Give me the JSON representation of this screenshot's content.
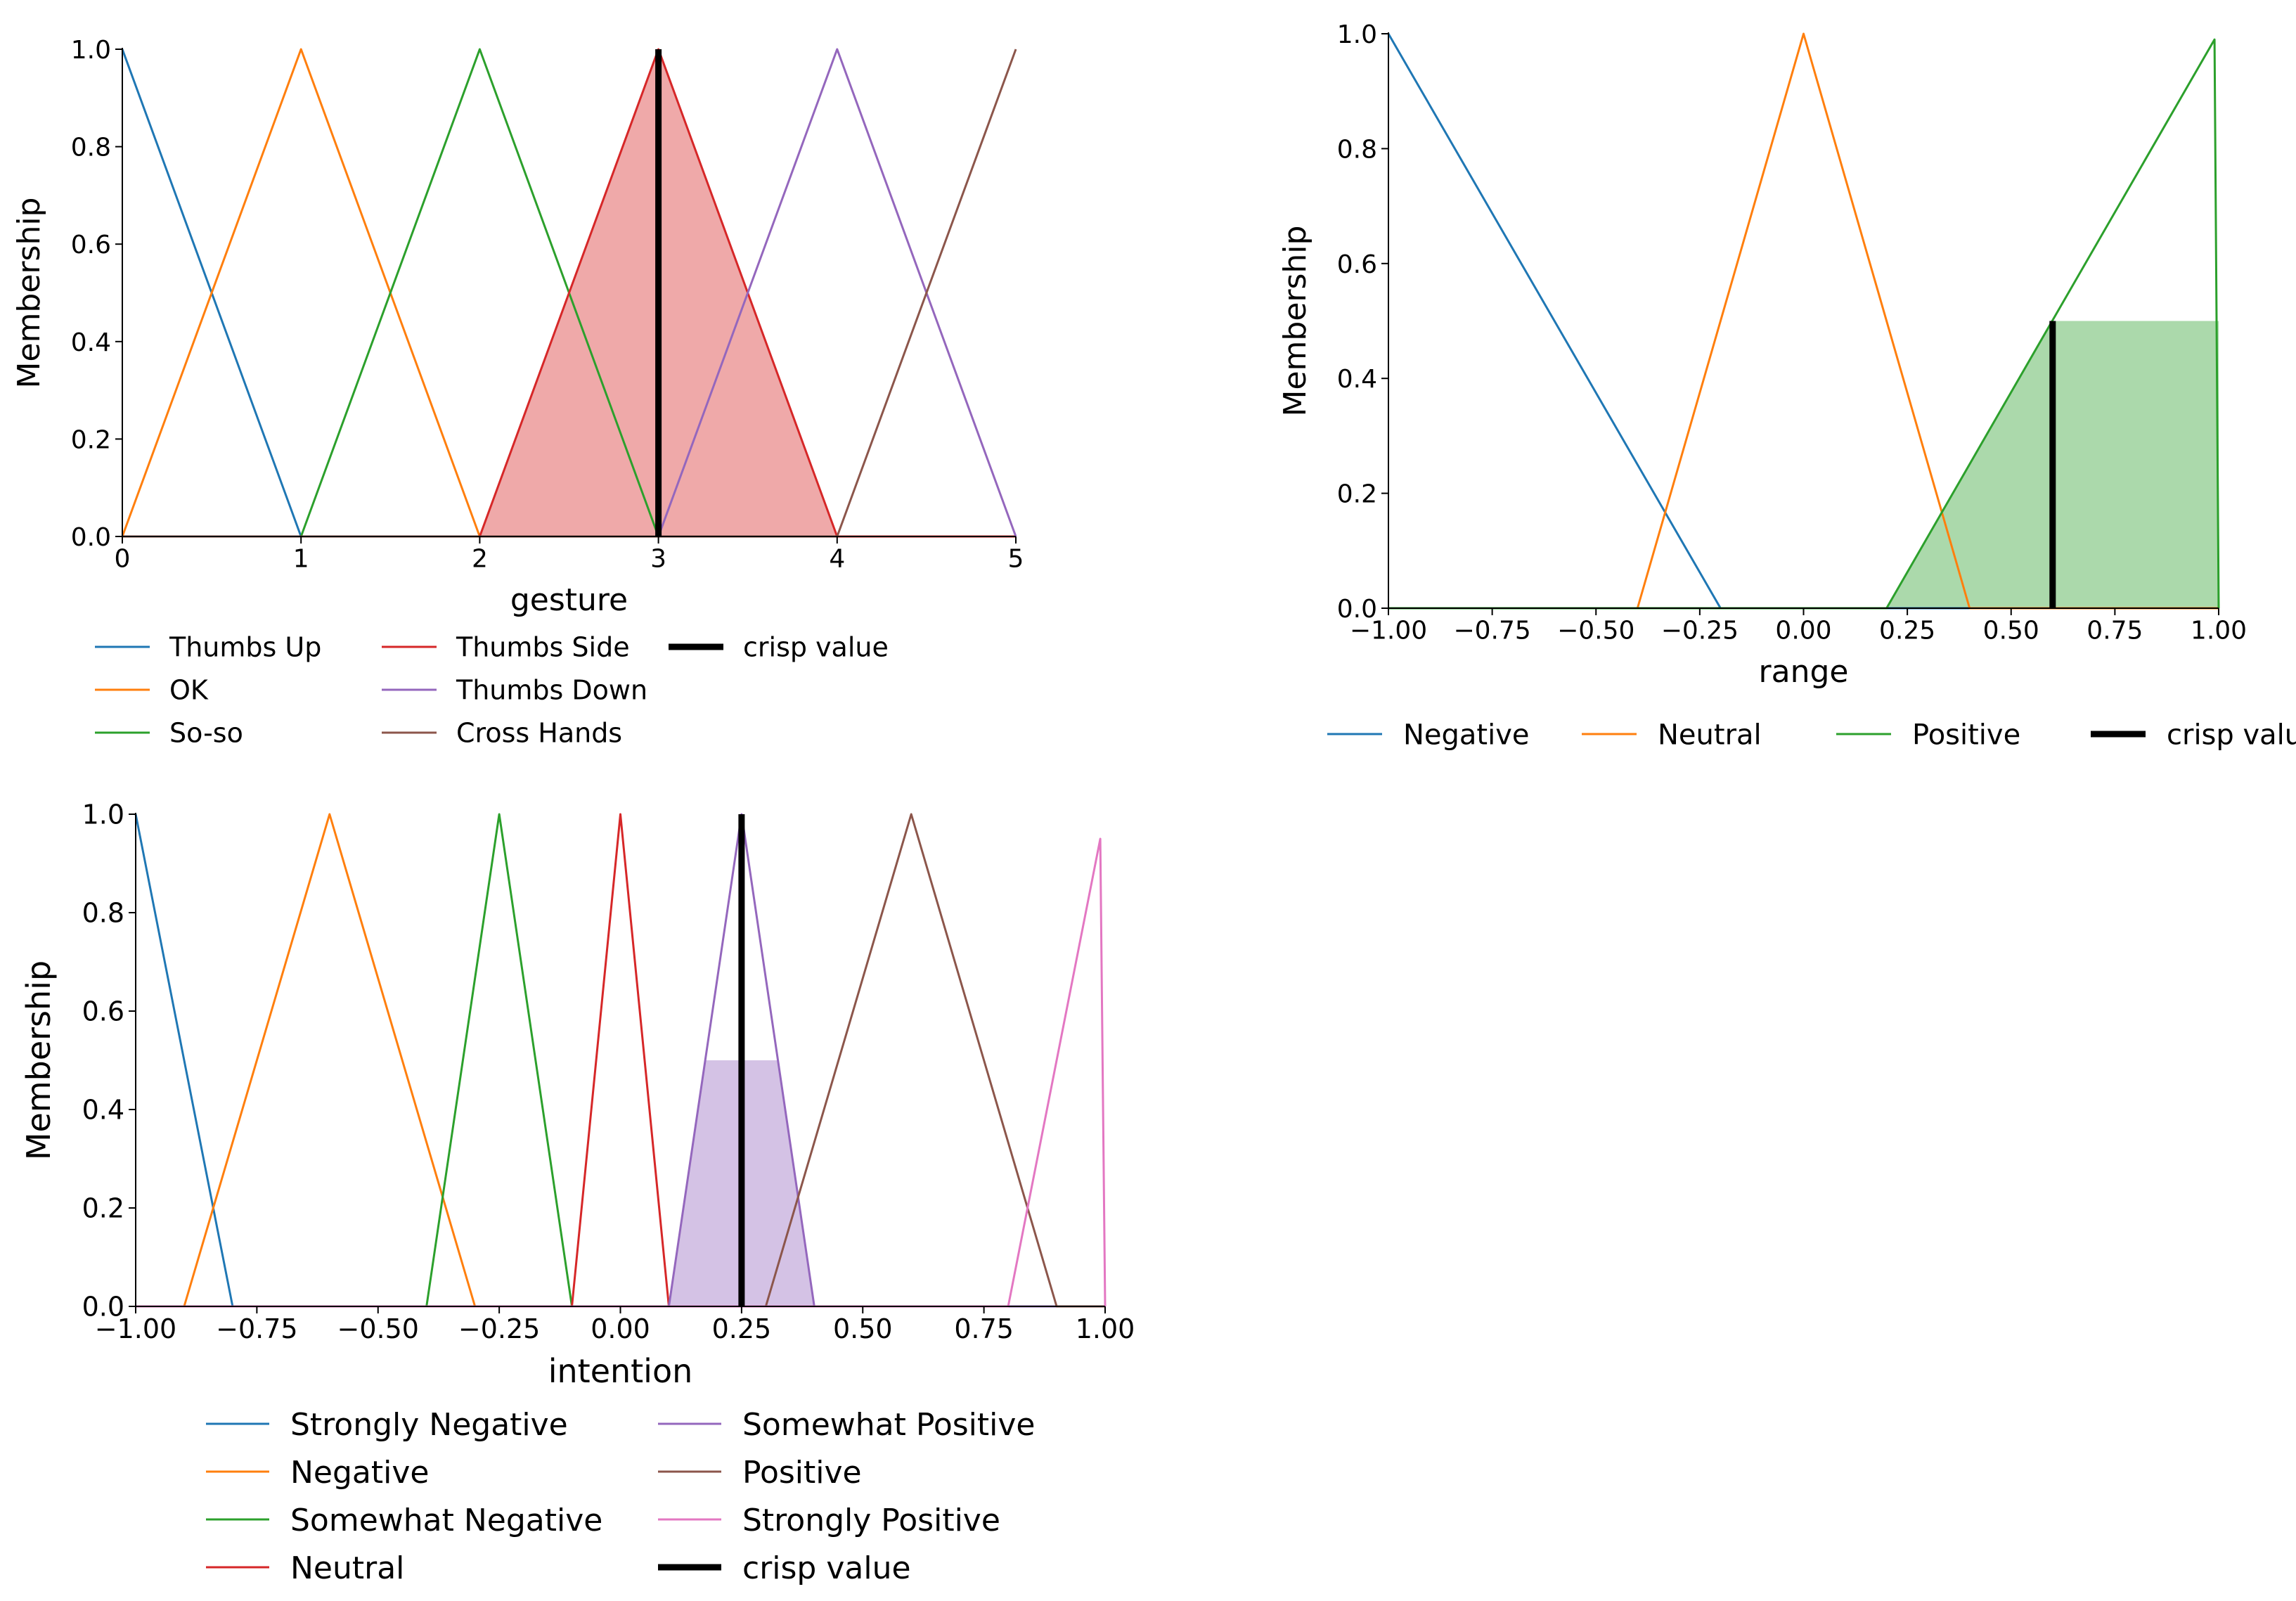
{
  "chart_data": [
    {
      "type": "line",
      "xlabel": "gesture",
      "ylabel": "Membership",
      "xlim": [
        0,
        5
      ],
      "ylim": [
        0,
        1
      ],
      "xticks": [
        0,
        1,
        2,
        3,
        4,
        5
      ],
      "xtick_labels": [
        "0",
        "1",
        "2",
        "3",
        "4",
        "5"
      ],
      "yticks": [
        0,
        0.2,
        0.4,
        0.6,
        0.8,
        1.0
      ],
      "ytick_labels": [
        "0.0",
        "0.2",
        "0.4",
        "0.6",
        "0.8",
        "1.0"
      ],
      "grid": false,
      "legend_position": "bottom",
      "legend_columns": 3,
      "series": [
        {
          "name": "Thumbs Up",
          "color": "#1f77b4",
          "x": [
            0,
            1,
            5
          ],
          "y": [
            1,
            0,
            0
          ]
        },
        {
          "name": "OK",
          "color": "#ff7f0e",
          "x": [
            0,
            1,
            2,
            5
          ],
          "y": [
            0,
            1,
            0,
            0
          ]
        },
        {
          "name": "So-so",
          "color": "#2ca02c",
          "x": [
            0,
            1,
            2,
            3,
            5
          ],
          "y": [
            0,
            0,
            1,
            0,
            0
          ]
        },
        {
          "name": "Thumbs Side",
          "color": "#d62728",
          "x": [
            0,
            2,
            3,
            4,
            5
          ],
          "y": [
            0,
            0,
            1,
            0,
            0
          ]
        },
        {
          "name": "Thumbs Down",
          "color": "#9467bd",
          "x": [
            0,
            3,
            4,
            5
          ],
          "y": [
            0,
            0,
            1,
            0
          ]
        },
        {
          "name": "Cross Hands",
          "color": "#8c564b",
          "x": [
            0,
            4,
            5
          ],
          "y": [
            0,
            0,
            1
          ]
        }
      ],
      "activation": {
        "color": "#d62728",
        "x": [
          2,
          3,
          4
        ],
        "y": [
          0,
          1,
          0
        ]
      },
      "crisp_value": {
        "name": "crisp value",
        "x": 3,
        "y": 1.0
      }
    },
    {
      "type": "line",
      "xlabel": "range",
      "ylabel": "Membership",
      "xlim": [
        -1,
        1
      ],
      "ylim": [
        0,
        1
      ],
      "xticks": [
        -1,
        -0.75,
        -0.5,
        -0.25,
        0,
        0.25,
        0.5,
        0.75,
        1
      ],
      "xtick_labels": [
        "−1.00",
        "−0.75",
        "−0.50",
        "−0.25",
        "0.00",
        "0.25",
        "0.50",
        "0.75",
        "1.00"
      ],
      "yticks": [
        0,
        0.2,
        0.4,
        0.6,
        0.8,
        1.0
      ],
      "ytick_labels": [
        "0.0",
        "0.2",
        "0.4",
        "0.6",
        "0.8",
        "1.0"
      ],
      "grid": false,
      "legend_position": "bottom",
      "legend_columns": 4,
      "series": [
        {
          "name": "Negative",
          "color": "#1f77b4",
          "x": [
            -1,
            -0.2,
            1
          ],
          "y": [
            1,
            0,
            0
          ]
        },
        {
          "name": "Neutral",
          "color": "#ff7f0e",
          "x": [
            -1,
            -0.4,
            0,
            0.4,
            1
          ],
          "y": [
            0,
            0,
            1,
            0,
            0
          ]
        },
        {
          "name": "Positive",
          "color": "#2ca02c",
          "x": [
            -1,
            0.2,
            0.99,
            1
          ],
          "y": [
            0,
            0,
            0.99,
            0
          ]
        }
      ],
      "activation": {
        "color": "#2ca02c",
        "x": [
          0.2,
          0.6,
          1.0,
          1.0
        ],
        "y": [
          0,
          0.5,
          0.5,
          0
        ]
      },
      "crisp_value": {
        "name": "crisp value",
        "x": 0.6,
        "y": 0.5
      }
    },
    {
      "type": "line",
      "xlabel": "intention",
      "ylabel": "Membership",
      "xlim": [
        -1,
        1
      ],
      "ylim": [
        0,
        1
      ],
      "xticks": [
        -1,
        -0.75,
        -0.5,
        -0.25,
        0,
        0.25,
        0.5,
        0.75,
        1
      ],
      "xtick_labels": [
        "−1.00",
        "−0.75",
        "−0.50",
        "−0.25",
        "0.00",
        "0.25",
        "0.50",
        "0.75",
        "1.00"
      ],
      "yticks": [
        0,
        0.2,
        0.4,
        0.6,
        0.8,
        1.0
      ],
      "ytick_labels": [
        "0.0",
        "0.2",
        "0.4",
        "0.6",
        "0.8",
        "1.0"
      ],
      "grid": false,
      "legend_position": "bottom",
      "legend_columns": 2,
      "series": [
        {
          "name": "Strongly Negative",
          "color": "#1f77b4",
          "x": [
            -1,
            -0.8,
            1
          ],
          "y": [
            1,
            0,
            0
          ]
        },
        {
          "name": "Negative",
          "color": "#ff7f0e",
          "x": [
            -1,
            -0.9,
            -0.6,
            -0.3,
            1
          ],
          "y": [
            0,
            0,
            1,
            0,
            0
          ]
        },
        {
          "name": "Somewhat Negative",
          "color": "#2ca02c",
          "x": [
            -1,
            -0.4,
            -0.25,
            -0.1,
            1
          ],
          "y": [
            0,
            0,
            1,
            0,
            0
          ]
        },
        {
          "name": "Neutral",
          "color": "#d62728",
          "x": [
            -1,
            -0.1,
            0,
            0.1,
            1
          ],
          "y": [
            0,
            0,
            1,
            0,
            0
          ]
        },
        {
          "name": "Somewhat Positive",
          "color": "#9467bd",
          "x": [
            -1,
            0.1,
            0.25,
            0.4,
            1
          ],
          "y": [
            0,
            0,
            1,
            0,
            0
          ]
        },
        {
          "name": "Positive",
          "color": "#8c564b",
          "x": [
            -1,
            0.3,
            0.6,
            0.9,
            1
          ],
          "y": [
            0,
            0,
            1,
            0,
            0
          ]
        },
        {
          "name": "Strongly Positive",
          "color": "#e377c2",
          "x": [
            -1,
            0.8,
            0.99,
            1
          ],
          "y": [
            0,
            0,
            0.95,
            0
          ]
        }
      ],
      "activation": {
        "color": "#9467bd",
        "x": [
          0.1,
          0.175,
          0.325,
          0.4
        ],
        "y": [
          0,
          0.5,
          0.5,
          0
        ]
      },
      "crisp_value": {
        "name": "crisp value",
        "x": 0.25,
        "y": 1.0
      }
    }
  ]
}
